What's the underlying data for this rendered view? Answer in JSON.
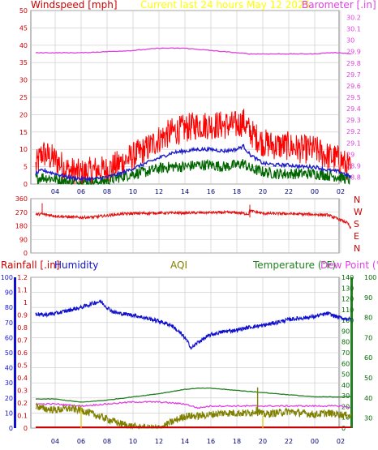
{
  "colors": {
    "background": "#ffffff",
    "plot_bg": "#ffffff",
    "grid": "#c8c8c8",
    "frame": "#808080",
    "windspeed": "#cc0000",
    "windgust": "#ff0000",
    "windavg": "#1c1cc8",
    "windlow": "#006600",
    "barometer": "#e040e0",
    "direction": "#e01010",
    "rainfall": "#cc0000",
    "humidity": "#1010cc",
    "aqi": "#808000",
    "temperature": "#208020",
    "dewpoint": "#e040e0",
    "title": "#ffff00",
    "temp_axis": "#006600"
  },
  "header": {
    "windspeed_label": "Windspeed [mph]",
    "title": "Current last 24 hours May 12 2025",
    "barometer_label": "Barometer [.in]"
  },
  "bottom_header": {
    "rainfall_label": "Rainfall [.in]",
    "humidity_label": "Humidity",
    "aqi_label": "AQI",
    "temperature_label": "Temperature (°F)",
    "dewpoint_label": "Dew Point (°F)"
  },
  "chart_data": [
    {
      "type": "line",
      "id": "wind",
      "x_tick_labels": [
        "04",
        "06",
        "08",
        "10",
        "12",
        "14",
        "16",
        "18",
        "20",
        "22",
        "00",
        "02"
      ],
      "y_left": {
        "label": "Windspeed [mph]",
        "ticks": [
          0,
          5,
          10,
          15,
          20,
          25,
          30,
          35,
          40,
          45,
          50
        ],
        "ylim": [
          0,
          50
        ]
      },
      "y_right": {
        "label": "Barometer [.in]",
        "ticks": [
          "28.8",
          "28.9",
          "29",
          "29.1",
          "29.2",
          "29.3",
          "29.4",
          "29.5",
          "29.6",
          "29.7",
          "29.8",
          "29.9",
          "30",
          "30.1",
          "30.2"
        ],
        "ylim": [
          28.74,
          30.26
        ]
      },
      "grid": true,
      "series": [
        {
          "key": "gust",
          "x": [
            2.5,
            3.0,
            4.0,
            5.0,
            6.0,
            7.0,
            8.0,
            9.0,
            10.0,
            11.0,
            12.0,
            13.0,
            14.0,
            15.0,
            16.0,
            17.0,
            18.0,
            18.5,
            19.0,
            20.0,
            21.0,
            22.0,
            23.0,
            24.0,
            25.0,
            26.0,
            26.8
          ],
          "values": [
            5,
            9,
            7,
            4,
            3,
            4,
            4,
            6,
            8,
            10,
            13,
            15,
            16,
            17,
            17,
            17,
            17,
            18,
            15,
            12,
            11,
            11,
            10,
            10,
            8,
            7,
            4
          ]
        },
        {
          "key": "avg",
          "x": [
            2.5,
            3.0,
            4.0,
            5.0,
            6.0,
            7.0,
            8.0,
            9.0,
            10.0,
            11.0,
            12.0,
            13.0,
            14.0,
            15.0,
            16.0,
            17.0,
            18.0,
            18.5,
            19.0,
            20.0,
            21.0,
            22.0,
            23.0,
            24.0,
            25.0,
            26.0,
            26.8
          ],
          "values": [
            3,
            4,
            3,
            2,
            1.5,
            1.5,
            2,
            3,
            4.5,
            6,
            7.5,
            9,
            9.5,
            10,
            10,
            9.5,
            10,
            11,
            8.5,
            6,
            5.5,
            5.5,
            5,
            5,
            4,
            3.5,
            2
          ]
        },
        {
          "key": "low",
          "x": [
            2.5,
            3.0,
            4.0,
            5.0,
            6.0,
            7.0,
            8.0,
            9.0,
            10.0,
            11.0,
            12.0,
            13.0,
            14.0,
            15.0,
            16.0,
            17.0,
            18.0,
            18.5,
            19.0,
            20.0,
            21.0,
            22.0,
            23.0,
            24.0,
            25.0,
            26.0,
            26.8
          ],
          "values": [
            1.5,
            2,
            1.5,
            0.5,
            0.5,
            0.5,
            1,
            2,
            3,
            3.5,
            4.5,
            5,
            5,
            5.5,
            5.5,
            5,
            5.5,
            6,
            4.5,
            3.5,
            3,
            3,
            3,
            3,
            2.5,
            2,
            1
          ]
        },
        {
          "key": "barometer",
          "axis": "right",
          "x": [
            2.5,
            4.0,
            6.0,
            8.0,
            10.0,
            12.0,
            13.0,
            14.0,
            16.0,
            18.0,
            19.0,
            20.0,
            22.0,
            24.0,
            25.0,
            26.0,
            26.8
          ],
          "values": [
            29.89,
            29.89,
            29.89,
            29.9,
            29.91,
            29.93,
            29.93,
            29.93,
            29.91,
            29.89,
            29.88,
            29.88,
            29.88,
            29.88,
            29.89,
            29.89,
            29.88
          ]
        }
      ]
    },
    {
      "type": "line",
      "id": "direction",
      "x_tick_labels": [
        "04",
        "06",
        "08",
        "10",
        "12",
        "14",
        "16",
        "18",
        "20",
        "22",
        "00",
        "02"
      ],
      "y_left": {
        "ticks": [
          0,
          90,
          180,
          270,
          360
        ],
        "ylim": [
          0,
          360
        ]
      },
      "y_right": {
        "ticks": [
          "N",
          "W",
          "S",
          "E",
          "N"
        ]
      },
      "grid": true,
      "series": [
        {
          "key": "direction",
          "x": [
            2.5,
            3.0,
            4.0,
            5.0,
            6.0,
            7.0,
            8.0,
            9.0,
            10.0,
            12.0,
            14.0,
            16.0,
            18.0,
            18.9,
            19.0,
            20.0,
            22.0,
            24.0,
            25.0,
            25.8,
            26.5,
            26.8
          ],
          "values": [
            255,
            258,
            245,
            238,
            235,
            238,
            248,
            258,
            262,
            265,
            265,
            268,
            268,
            258,
            280,
            262,
            260,
            255,
            252,
            225,
            200,
            160
          ]
        }
      ]
    },
    {
      "type": "line",
      "id": "climate",
      "x_tick_labels": [
        "04",
        "06",
        "08",
        "10",
        "12",
        "14",
        "16",
        "18",
        "20",
        "22",
        "00",
        "02"
      ],
      "y_left_outer": {
        "label": "Rainfall [.in]",
        "ticks": [
          "0",
          "0.1",
          "0.2",
          "0.3",
          "0.4",
          "0.5",
          "0.6",
          "0.7",
          "0.8",
          "0.9",
          "1",
          "1.1",
          "1.2"
        ],
        "ylim": [
          0,
          1.2
        ]
      },
      "y_left_inner": {
        "label": "Humidity",
        "ticks": [
          0,
          10,
          20,
          30,
          40,
          50,
          60,
          70,
          80,
          90,
          100
        ],
        "ylim": [
          0,
          100
        ]
      },
      "y_right_inner": {
        "label": "Temperature (°F)",
        "ticks": [
          0,
          10,
          20,
          30,
          40,
          50,
          60,
          70,
          80,
          90,
          100,
          110,
          120,
          130,
          140
        ],
        "ylim": [
          0,
          140
        ]
      },
      "y_right_outer": {
        "label": "Dew Point (°F)",
        "ticks": [
          30,
          40,
          50,
          60,
          70,
          80,
          90,
          100
        ],
        "ylim": [
          25,
          100
        ]
      },
      "grid": true,
      "series": [
        {
          "key": "humidity",
          "name": "Humidity",
          "x": [
            2.5,
            3.0,
            4.0,
            5.0,
            6.0,
            7.0,
            7.5,
            8.0,
            8.5,
            9.0,
            10.0,
            11.0,
            12.0,
            13.0,
            14.0,
            14.5,
            15.0,
            16.0,
            17.0,
            18.0,
            19.0,
            20.0,
            21.0,
            22.0,
            23.0,
            24.0,
            25.0,
            26.0,
            26.8
          ],
          "values": [
            76,
            75,
            76,
            78,
            80,
            83,
            84,
            80,
            77,
            76,
            75,
            73,
            71,
            68,
            60,
            53,
            57,
            62,
            64,
            65,
            67,
            68,
            70,
            72,
            73,
            74,
            76,
            73,
            72
          ]
        },
        {
          "key": "temperature",
          "name": "Temperature (°F)",
          "x": [
            2.5,
            4.0,
            6.0,
            8.0,
            10.0,
            12.0,
            14.0,
            15.0,
            16.0,
            18.0,
            20.0,
            22.0,
            24.0,
            26.0,
            26.8
          ],
          "values": [
            27,
            27,
            24,
            26,
            29,
            32,
            36,
            37,
            37,
            35,
            33,
            31,
            29,
            29,
            29
          ]
        },
        {
          "key": "dewpoint",
          "name": "Dew Point (°F)",
          "x": [
            2.5,
            4.0,
            6.0,
            8.0,
            10.0,
            12.0,
            14.0,
            15.0,
            16.0,
            18.0,
            20.0,
            22.0,
            24.0,
            26.0,
            26.8
          ],
          "values": [
            37,
            37,
            36,
            37,
            38,
            38,
            37,
            35,
            36,
            36,
            36,
            36,
            36,
            36,
            35
          ]
        },
        {
          "key": "aqi",
          "name": "AQI",
          "x": [
            2.5,
            3.0,
            4.0,
            5.0,
            6.0,
            7.0,
            8.0,
            9.0,
            10.0,
            11.0,
            12.0,
            13.0,
            14.0,
            15.0,
            16.0,
            17.0,
            18.0,
            19.0,
            19.6,
            20.0,
            21.0,
            22.0,
            23.0,
            24.0,
            25.0,
            26.0,
            26.8
          ],
          "values": [
            15,
            13,
            12,
            13,
            12,
            9,
            6,
            3,
            1,
            0,
            0,
            4,
            8,
            8,
            9,
            10,
            10,
            10,
            12,
            9,
            10,
            11,
            10,
            9,
            10,
            9,
            8
          ]
        },
        {
          "key": "rainfall",
          "name": "Rainfall [.in]",
          "x": [
            2.5,
            26.8
          ],
          "values": [
            0,
            0
          ]
        }
      ]
    }
  ]
}
